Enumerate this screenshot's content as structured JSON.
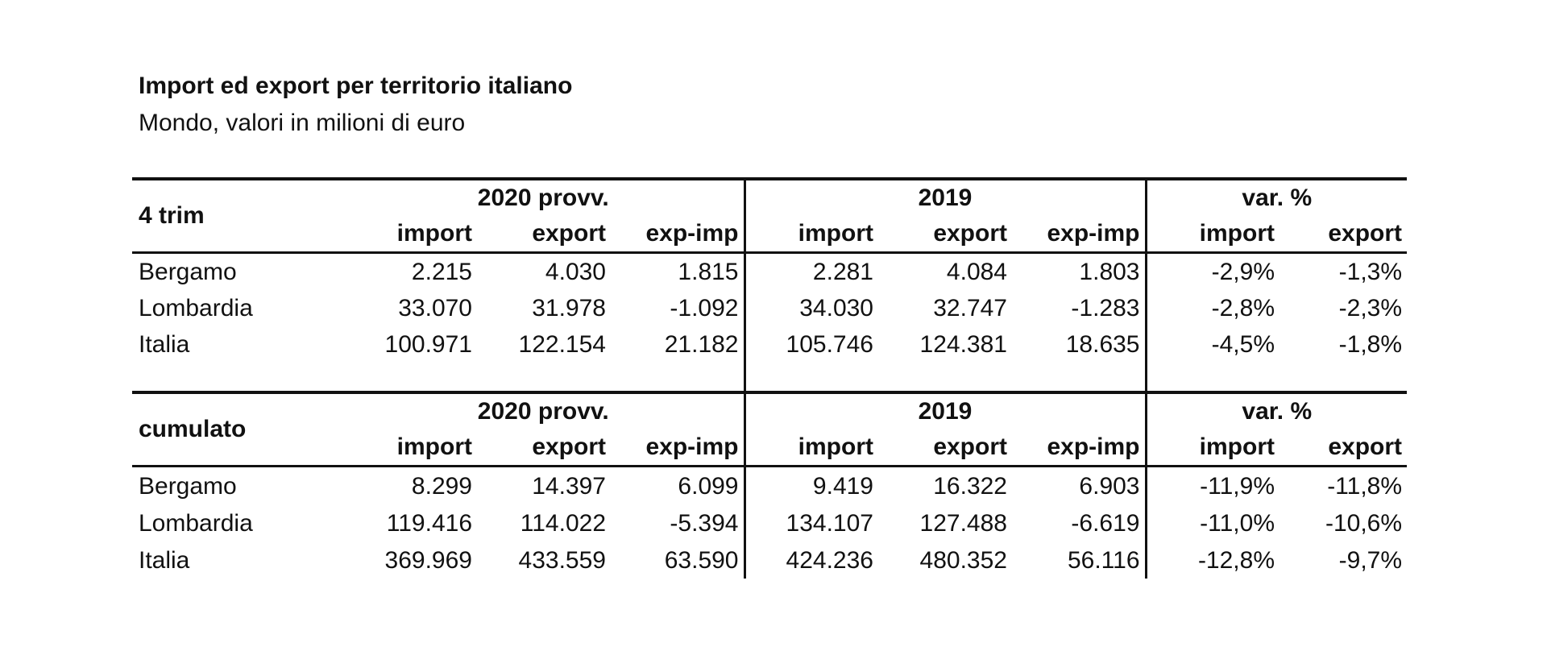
{
  "title": "Import ed export per territorio italiano",
  "subtitle": "Mondo, valori in milioni di euro",
  "chart_data": {
    "type": "table",
    "column_groups": [
      "2020 provv.",
      "2019",
      "var. %"
    ],
    "columns": [
      "import",
      "export",
      "exp-imp",
      "import",
      "export",
      "exp-imp",
      "import",
      "export"
    ],
    "tables": [
      {
        "label": "4 trim",
        "rows": [
          {
            "name": "Bergamo",
            "values": [
              "2.215",
              "4.030",
              "1.815",
              "2.281",
              "4.084",
              "1.803",
              "-2,9%",
              "-1,3%"
            ]
          },
          {
            "name": "Lombardia",
            "values": [
              "33.070",
              "31.978",
              "-1.092",
              "34.030",
              "32.747",
              "-1.283",
              "-2,8%",
              "-2,3%"
            ]
          },
          {
            "name": "Italia",
            "values": [
              "100.971",
              "122.154",
              "21.182",
              "105.746",
              "124.381",
              "18.635",
              "-4,5%",
              "-1,8%"
            ]
          }
        ]
      },
      {
        "label": "cumulato",
        "rows": [
          {
            "name": "Bergamo",
            "values": [
              "8.299",
              "14.397",
              "6.099",
              "9.419",
              "16.322",
              "6.903",
              "-11,9%",
              "-11,8%"
            ]
          },
          {
            "name": "Lombardia",
            "values": [
              "119.416",
              "114.022",
              "-5.394",
              "134.107",
              "127.488",
              "-6.619",
              "-11,0%",
              "-10,6%"
            ]
          },
          {
            "name": "Italia",
            "values": [
              "369.969",
              "433.559",
              "63.590",
              "424.236",
              "480.352",
              "56.116",
              "-12,8%",
              "-9,7%"
            ]
          }
        ]
      }
    ]
  }
}
